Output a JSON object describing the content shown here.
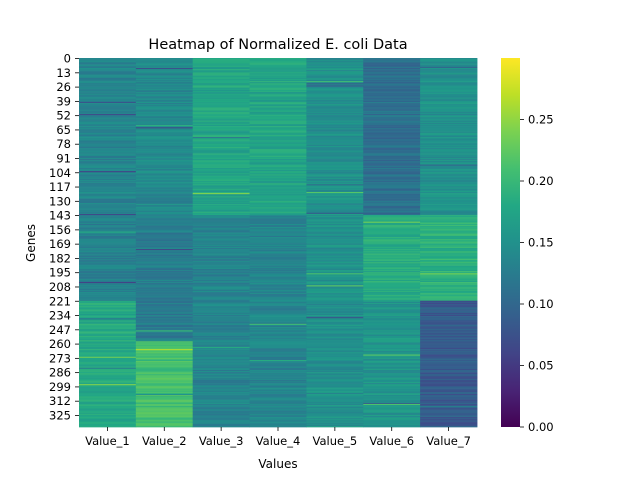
{
  "chart_data": {
    "type": "heatmap",
    "title": "Heatmap of Normalized E. coli Data",
    "xlabel": "Values",
    "ylabel": "Genes",
    "columns": [
      "Value_1",
      "Value_2",
      "Value_3",
      "Value_4",
      "Value_5",
      "Value_6",
      "Value_7"
    ],
    "row_count": 336,
    "row_ticks": [
      "0",
      "13",
      "26",
      "39",
      "52",
      "65",
      "78",
      "91",
      "104",
      "117",
      "130",
      "143",
      "156",
      "169",
      "182",
      "195",
      "208",
      "221",
      "234",
      "247",
      "260",
      "273",
      "286",
      "299",
      "312",
      "325"
    ],
    "row_tick_step": 13,
    "colormap": "viridis",
    "vmin": 0.0,
    "vmax": 0.3,
    "colorbar_ticks": [
      "0.00",
      "0.05",
      "0.10",
      "0.15",
      "0.20",
      "0.25"
    ],
    "column_profiles": [
      {
        "column": "Value_1",
        "segments": [
          {
            "rows": [
              0,
              142
            ],
            "mean": 0.135
          },
          {
            "rows": [
              143,
              220
            ],
            "mean": 0.13
          },
          {
            "rows": [
              221,
              335
            ],
            "mean": 0.18
          }
        ]
      },
      {
        "column": "Value_2",
        "segments": [
          {
            "rows": [
              0,
              142
            ],
            "mean": 0.14
          },
          {
            "rows": [
              143,
              257
            ],
            "mean": 0.125
          },
          {
            "rows": [
              258,
              335
            ],
            "mean": 0.21
          }
        ]
      },
      {
        "column": "Value_3",
        "segments": [
          {
            "rows": [
              0,
              142
            ],
            "mean": 0.175
          },
          {
            "rows": [
              143,
              335
            ],
            "mean": 0.135
          }
        ]
      },
      {
        "column": "Value_4",
        "segments": [
          {
            "rows": [
              0,
              142
            ],
            "mean": 0.175
          },
          {
            "rows": [
              143,
              335
            ],
            "mean": 0.135
          }
        ]
      },
      {
        "column": "Value_5",
        "segments": [
          {
            "rows": [
              0,
              335
            ],
            "mean": 0.15
          }
        ]
      },
      {
        "column": "Value_6",
        "segments": [
          {
            "rows": [
              0,
              142
            ],
            "mean": 0.11
          },
          {
            "rows": [
              143,
              220
            ],
            "mean": 0.185
          },
          {
            "rows": [
              221,
              335
            ],
            "mean": 0.155
          }
        ]
      },
      {
        "column": "Value_7",
        "segments": [
          {
            "rows": [
              0,
              142
            ],
            "mean": 0.15
          },
          {
            "rows": [
              143,
              220
            ],
            "mean": 0.19
          },
          {
            "rows": [
              221,
              335
            ],
            "mean": 0.085
          }
        ]
      }
    ]
  }
}
